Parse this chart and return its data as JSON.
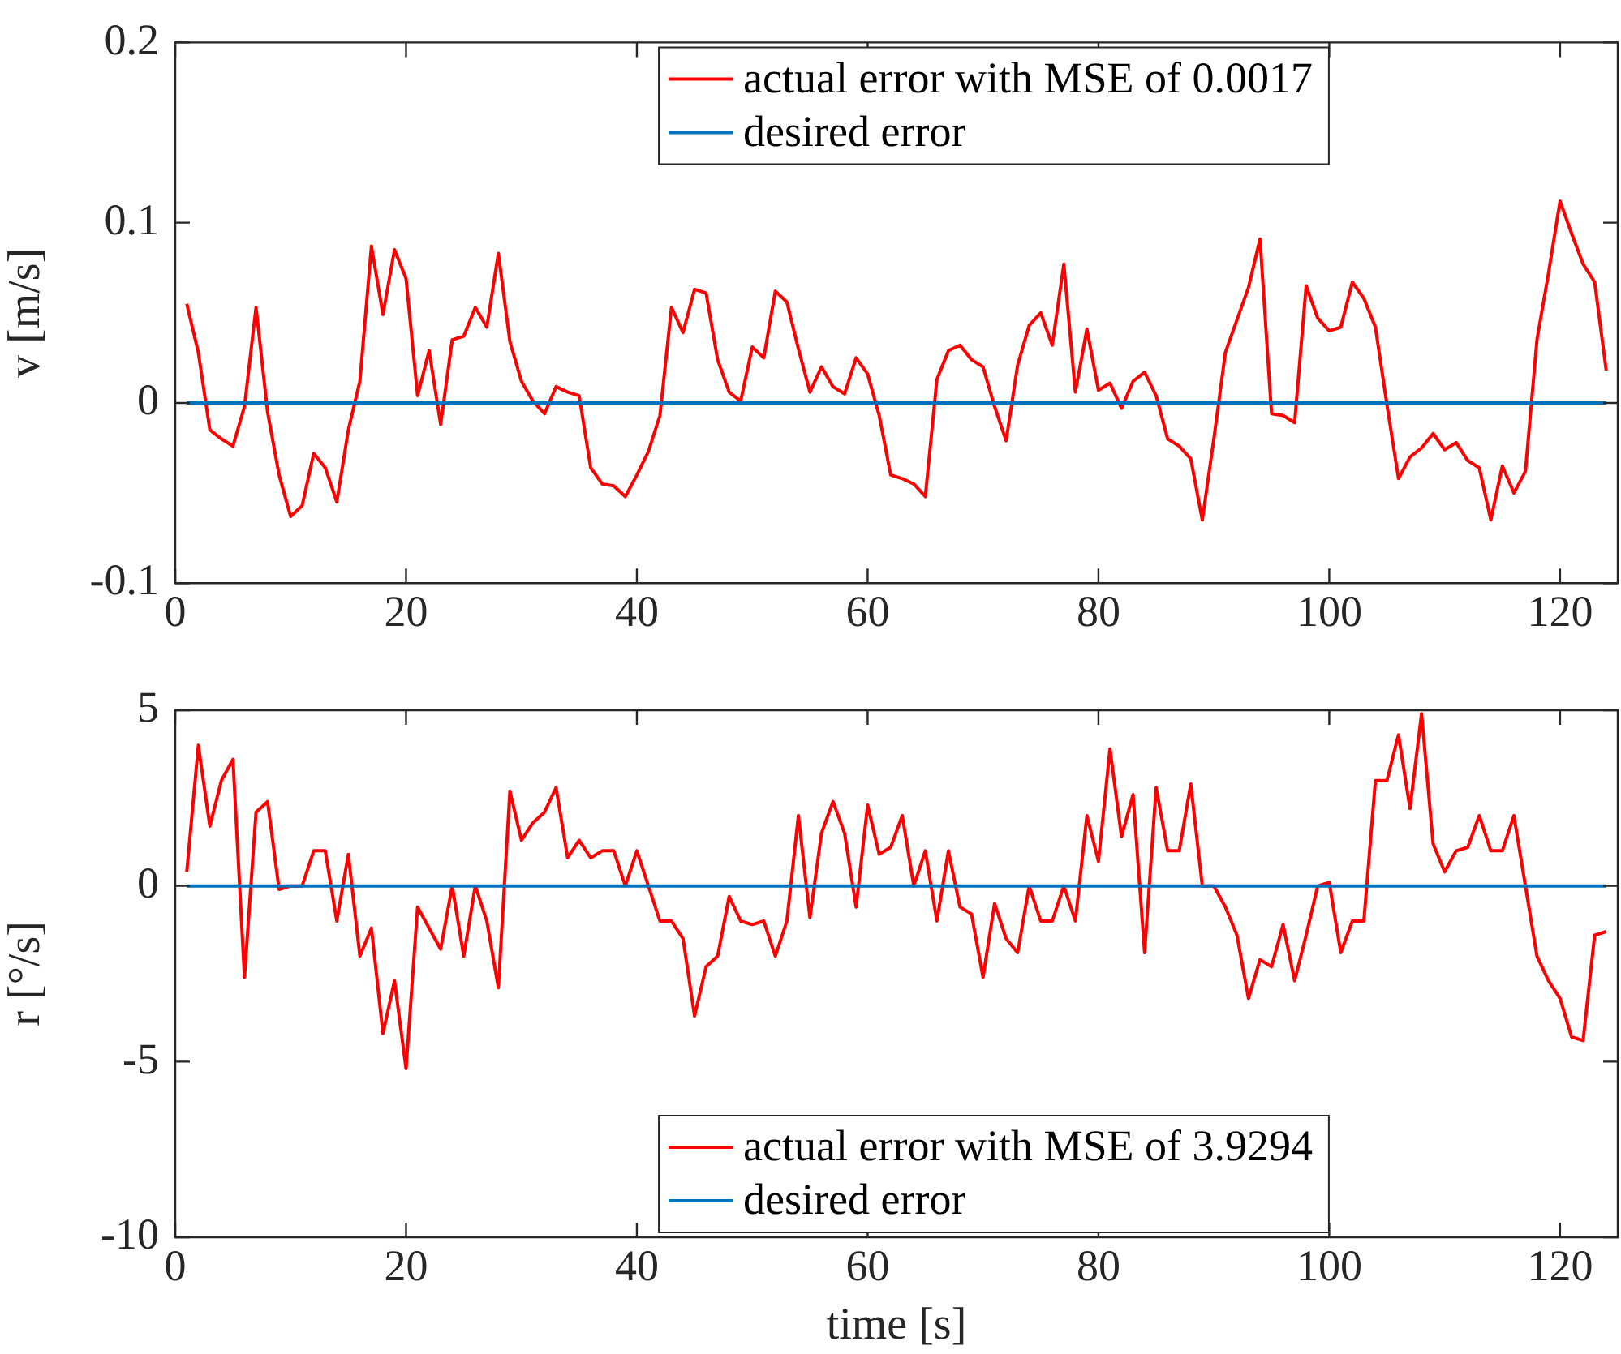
{
  "chart_data": [
    {
      "type": "line",
      "ylabel": "v [m/s]",
      "xlim": [
        0,
        125
      ],
      "xticks": [
        0,
        20,
        40,
        60,
        80,
        100,
        120
      ],
      "ylim": [
        -0.1,
        0.2
      ],
      "yticks": [
        -0.1,
        0,
        0.1,
        0.2
      ],
      "grid": false,
      "legend": "top",
      "marker": "none",
      "line_style": "solid",
      "series": [
        {
          "name": "actual error with MSE of 0.0017",
          "color": "#ff0000",
          "x": [
            1,
            2,
            3,
            4,
            5,
            6,
            7,
            8,
            9,
            10,
            11,
            12,
            13,
            14,
            15,
            16,
            17,
            18,
            19,
            20,
            21,
            22,
            23,
            24,
            25,
            26,
            27,
            28,
            29,
            30,
            31,
            32,
            33,
            34,
            35,
            36,
            37,
            38,
            39,
            40,
            41,
            42,
            43,
            44,
            45,
            46,
            47,
            48,
            49,
            50,
            51,
            52,
            53,
            54,
            55,
            56,
            57,
            58,
            59,
            60,
            61,
            62,
            63,
            64,
            65,
            66,
            67,
            68,
            69,
            70,
            71,
            72,
            73,
            74,
            75,
            76,
            77,
            78,
            79,
            80,
            81,
            82,
            83,
            84,
            85,
            86,
            87,
            88,
            89,
            90,
            91,
            92,
            93,
            94,
            95,
            96,
            97,
            98,
            99,
            100,
            101,
            102,
            103,
            104,
            105,
            106,
            107,
            108,
            109,
            110,
            111,
            112,
            113,
            114,
            115,
            116,
            117,
            118,
            119,
            120,
            121,
            122,
            123,
            124
          ],
          "values": [
            0.055,
            0.028,
            -0.015,
            -0.02,
            -0.024,
            -0.002,
            0.053,
            -0.005,
            -0.04,
            -0.063,
            -0.057,
            -0.028,
            -0.036,
            -0.055,
            -0.015,
            0.012,
            0.087,
            0.049,
            0.085,
            0.069,
            0.004,
            0.029,
            -0.012,
            0.035,
            0.037,
            0.053,
            0.042,
            0.083,
            0.034,
            0.012,
            0.001,
            -0.006,
            0.009,
            0.006,
            0.004,
            -0.036,
            -0.045,
            -0.046,
            -0.052,
            -0.04,
            -0.027,
            -0.007,
            0.053,
            0.039,
            0.063,
            0.061,
            0.024,
            0.006,
            0.001,
            0.031,
            0.025,
            0.062,
            0.056,
            0.03,
            0.006,
            0.02,
            0.009,
            0.005,
            0.025,
            0.016,
            -0.007,
            -0.04,
            -0.042,
            -0.045,
            -0.052,
            0.013,
            0.029,
            0.032,
            0.024,
            0.02,
            -0.002,
            -0.021,
            0.021,
            0.043,
            0.05,
            0.032,
            0.077,
            0.006,
            0.041,
            0.007,
            0.011,
            -0.003,
            0.012,
            0.017,
            0.004,
            -0.02,
            -0.024,
            -0.031,
            -0.065,
            -0.02,
            0.028,
            0.046,
            0.064,
            0.091,
            -0.006,
            -0.007,
            -0.011,
            0.065,
            0.047,
            0.04,
            0.042,
            0.067,
            0.058,
            0.042,
            -0.001,
            -0.042,
            -0.03,
            -0.025,
            -0.017,
            -0.026,
            -0.022,
            -0.032,
            -0.036,
            -0.065,
            -0.035,
            -0.05,
            -0.038,
            0.035,
            0.072,
            0.112,
            0.094,
            0.077,
            0.067,
            0.018
          ]
        },
        {
          "name": "desired error",
          "color": "#0072bd",
          "x": [
            1,
            124
          ],
          "values": [
            0,
            0
          ]
        }
      ]
    },
    {
      "type": "line",
      "xlabel": "time [s]",
      "ylabel": "r [°/s]",
      "xlim": [
        0,
        125
      ],
      "xticks": [
        0,
        20,
        40,
        60,
        80,
        100,
        120
      ],
      "ylim": [
        -10,
        5
      ],
      "yticks": [
        -10,
        -5,
        0,
        5
      ],
      "grid": false,
      "legend": "bottom",
      "marker": "none",
      "line_style": "solid",
      "series": [
        {
          "name": "actual error with MSE of 3.9294",
          "color": "#ff0000",
          "x": [
            1,
            2,
            3,
            4,
            5,
            6,
            7,
            8,
            9,
            10,
            11,
            12,
            13,
            14,
            15,
            16,
            17,
            18,
            19,
            20,
            21,
            22,
            23,
            24,
            25,
            26,
            27,
            28,
            29,
            30,
            31,
            32,
            33,
            34,
            35,
            36,
            37,
            38,
            39,
            40,
            41,
            42,
            43,
            44,
            45,
            46,
            47,
            48,
            49,
            50,
            51,
            52,
            53,
            54,
            55,
            56,
            57,
            58,
            59,
            60,
            61,
            62,
            63,
            64,
            65,
            66,
            67,
            68,
            69,
            70,
            71,
            72,
            73,
            74,
            75,
            76,
            77,
            78,
            79,
            80,
            81,
            82,
            83,
            84,
            85,
            86,
            87,
            88,
            89,
            90,
            91,
            92,
            93,
            94,
            95,
            96,
            97,
            98,
            99,
            100,
            101,
            102,
            103,
            104,
            105,
            106,
            107,
            108,
            109,
            110,
            111,
            112,
            113,
            114,
            115,
            116,
            117,
            118,
            119,
            120,
            121,
            122,
            123,
            124
          ],
          "values": [
            0.4,
            4,
            1.7,
            3,
            3.6,
            -2.6,
            2.1,
            2.4,
            -0.1,
            0,
            0,
            1,
            1,
            -1,
            0.9,
            -2,
            -1.2,
            -4.2,
            -2.7,
            -5.2,
            -0.6,
            -1.2,
            -1.8,
            0,
            -2,
            0,
            -1,
            -2.9,
            2.7,
            1.3,
            1.8,
            2.1,
            2.8,
            0.8,
            1.3,
            0.8,
            1,
            1,
            0,
            1,
            0,
            -1,
            -1,
            -1.5,
            -3.7,
            -2.3,
            -2,
            -0.3,
            -1,
            -1.1,
            -1,
            -2,
            -1,
            2,
            -0.9,
            1.5,
            2.4,
            1.5,
            -0.6,
            2.3,
            0.9,
            1.1,
            2,
            0,
            1,
            -1,
            1,
            -0.6,
            -0.8,
            -2.6,
            -0.5,
            -1.5,
            -1.9,
            0,
            -1,
            -1,
            0,
            -1,
            2,
            0.7,
            3.9,
            1.4,
            2.6,
            -1.9,
            2.8,
            1,
            1,
            2.9,
            0,
            0,
            -0.6,
            -1.4,
            -3.2,
            -2.1,
            -2.3,
            -1.1,
            -2.7,
            -1.4,
            0,
            0.1,
            -1.9,
            -1,
            -1,
            3,
            3,
            4.3,
            2.2,
            4.9,
            1.2,
            0.4,
            1,
            1.1,
            2,
            1,
            1,
            2,
            0,
            -2,
            -2.7,
            -3.2,
            -4.3,
            -4.4,
            -1.4,
            -1.3
          ]
        },
        {
          "name": "desired error",
          "color": "#0072bd",
          "x": [
            1,
            124
          ],
          "values": [
            0,
            0
          ]
        }
      ]
    }
  ]
}
